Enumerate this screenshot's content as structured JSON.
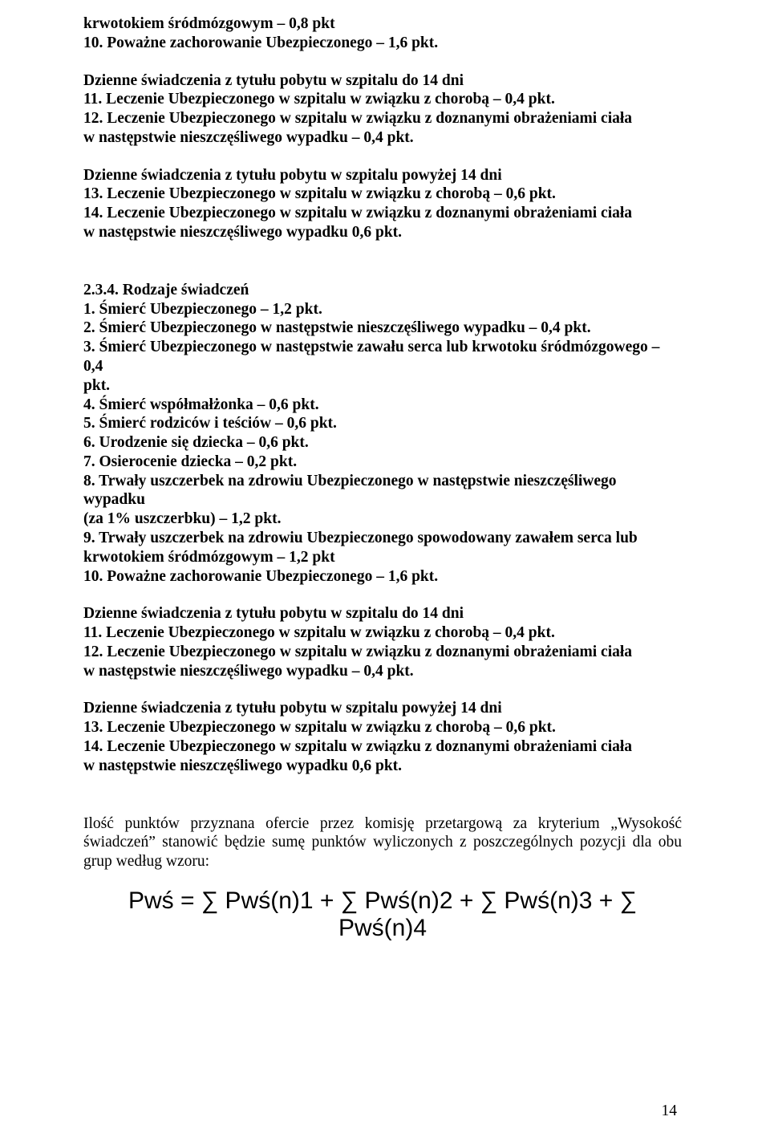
{
  "b1": {
    "l1": "krwotokiem śródmózgowym – 0,8 pkt",
    "l2": "10. Poważne zachorowanie Ubezpieczonego – 1,6 pkt."
  },
  "b2": {
    "h": "Dzienne świadczenia z tytułu pobytu w szpitalu do 14 dni",
    "l1": "11. Leczenie Ubezpieczonego w szpitalu w związku z chorobą – 0,4 pkt.",
    "l2a": "12. Leczenie Ubezpieczonego w szpitalu w związku z doznanymi obrażeniami ciała",
    "l2b": "w następstwie nieszczęśliwego wypadku – 0,4 pkt."
  },
  "b3": {
    "h": "Dzienne świadczenia z tytułu pobytu w szpitalu powyżej 14 dni",
    "l1": "13. Leczenie Ubezpieczonego w szpitalu w związku z chorobą – 0,6 pkt.",
    "l2a": "14. Leczenie Ubezpieczonego w szpitalu w związku z doznanymi obrażeniami ciała",
    "l2b": "w następstwie nieszczęśliwego wypadku 0,6 pkt."
  },
  "b4": {
    "h": "2.3.4. Rodzaje świadczeń",
    "l1": "1. Śmierć Ubezpieczonego – 1,2 pkt.",
    "l2": "2. Śmierć Ubezpieczonego w następstwie nieszczęśliwego wypadku – 0,4 pkt.",
    "l3a": "3. Śmierć Ubezpieczonego w następstwie zawału serca lub krwotoku śródmózgowego – 0,4",
    "l3b": "pkt.",
    "l4": "4. Śmierć współmałżonka – 0,6 pkt.",
    "l5": "5. Śmierć rodziców i teściów – 0,6 pkt.",
    "l6": "6. Urodzenie się dziecka – 0,6 pkt.",
    "l7": "7. Osierocenie dziecka – 0,2 pkt.",
    "l8a": "8. Trwały uszczerbek na zdrowiu Ubezpieczonego w następstwie nieszczęśliwego wypadku",
    "l8b": "(za 1% uszczerbku) – 1,2 pkt.",
    "l9a": "9. Trwały uszczerbek na zdrowiu Ubezpieczonego spowodowany zawałem serca lub",
    "l9b": "krwotokiem śródmózgowym – 1,2 pkt",
    "l10": "10. Poważne zachorowanie Ubezpieczonego – 1,6 pkt."
  },
  "b5": {
    "h": "Dzienne świadczenia z tytułu pobytu w szpitalu do 14 dni",
    "l1": "11. Leczenie Ubezpieczonego w szpitalu w związku z chorobą – 0,4 pkt.",
    "l2a": "12. Leczenie Ubezpieczonego w szpitalu w związku z doznanymi obrażeniami ciała",
    "l2b": "w następstwie nieszczęśliwego wypadku – 0,4 pkt."
  },
  "b6": {
    "h": "Dzienne świadczenia z tytułu pobytu w szpitalu powyżej 14 dni",
    "l1": "13. Leczenie Ubezpieczonego w szpitalu w związku z chorobą – 0,6 pkt.",
    "l2a": "14. Leczenie Ubezpieczonego w szpitalu w związku z doznanymi obrażeniami ciała",
    "l2b": "w następstwie nieszczęśliwego wypadku 0,6 pkt."
  },
  "para": "Ilość punktów przyznana ofercie przez komisję przetargową za kryterium „Wysokość świadczeń” stanowić będzie sumę punktów wyliczonych z poszczególnych pozycji dla obu grup według wzoru:",
  "formula": "Pwś = ∑ Pwś(n)1 + ∑ Pwś(n)2 + ∑ Pwś(n)3 + ∑ Pwś(n)4",
  "pagenum": "14"
}
